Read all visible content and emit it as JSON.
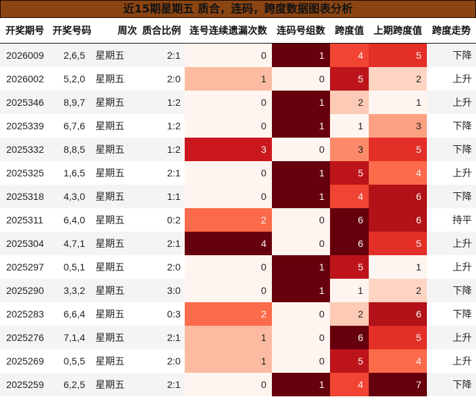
{
  "title": "近15期星期五 质合，连码，跨度数据图表分析",
  "columns": [
    "开奖期号",
    "开奖号码",
    "周次",
    "质合比例",
    "连号连续遗漏次数",
    "连码号组数",
    "跨度值",
    "上期跨度值",
    "跨度走势"
  ],
  "colors": {
    "title_bg": "#8B4513",
    "row_odd": "#f4f4f4",
    "row_even": "#ffffff",
    "colormap": "Reds"
  },
  "rows": [
    {
      "issue": "2026009",
      "numbers": "2,6,5",
      "weekday": "星期五",
      "ratio": "2:1",
      "consec_miss": "0",
      "consec_groups": "1",
      "span": "4",
      "prev_span": "5",
      "trend": "下降"
    },
    {
      "issue": "2026002",
      "numbers": "5,2,0",
      "weekday": "星期五",
      "ratio": "2:0",
      "consec_miss": "1",
      "consec_groups": "0",
      "span": "5",
      "prev_span": "2",
      "trend": "上升"
    },
    {
      "issue": "2025346",
      "numbers": "8,9,7",
      "weekday": "星期五",
      "ratio": "1:2",
      "consec_miss": "0",
      "consec_groups": "1",
      "span": "2",
      "prev_span": "1",
      "trend": "上升"
    },
    {
      "issue": "2025339",
      "numbers": "6,7,6",
      "weekday": "星期五",
      "ratio": "1:2",
      "consec_miss": "0",
      "consec_groups": "1",
      "span": "1",
      "prev_span": "3",
      "trend": "下降"
    },
    {
      "issue": "2025332",
      "numbers": "8,8,5",
      "weekday": "星期五",
      "ratio": "1:2",
      "consec_miss": "3",
      "consec_groups": "0",
      "span": "3",
      "prev_span": "5",
      "trend": "下降"
    },
    {
      "issue": "2025325",
      "numbers": "1,6,5",
      "weekday": "星期五",
      "ratio": "2:1",
      "consec_miss": "0",
      "consec_groups": "1",
      "span": "5",
      "prev_span": "4",
      "trend": "上升"
    },
    {
      "issue": "2025318",
      "numbers": "4,3,0",
      "weekday": "星期五",
      "ratio": "1:1",
      "consec_miss": "0",
      "consec_groups": "1",
      "span": "4",
      "prev_span": "6",
      "trend": "下降"
    },
    {
      "issue": "2025311",
      "numbers": "6,4,0",
      "weekday": "星期五",
      "ratio": "0:2",
      "consec_miss": "2",
      "consec_groups": "0",
      "span": "6",
      "prev_span": "6",
      "trend": "持平"
    },
    {
      "issue": "2025304",
      "numbers": "4,7,1",
      "weekday": "星期五",
      "ratio": "2:1",
      "consec_miss": "4",
      "consec_groups": "0",
      "span": "6",
      "prev_span": "5",
      "trend": "上升"
    },
    {
      "issue": "2025297",
      "numbers": "0,5,1",
      "weekday": "星期五",
      "ratio": "2:0",
      "consec_miss": "0",
      "consec_groups": "1",
      "span": "5",
      "prev_span": "1",
      "trend": "上升"
    },
    {
      "issue": "2025290",
      "numbers": "3,3,2",
      "weekday": "星期五",
      "ratio": "3:0",
      "consec_miss": "0",
      "consec_groups": "1",
      "span": "1",
      "prev_span": "2",
      "trend": "下降"
    },
    {
      "issue": "2025283",
      "numbers": "6,6,4",
      "weekday": "星期五",
      "ratio": "0:3",
      "consec_miss": "2",
      "consec_groups": "0",
      "span": "2",
      "prev_span": "6",
      "trend": "下降"
    },
    {
      "issue": "2025276",
      "numbers": "7,1,4",
      "weekday": "星期五",
      "ratio": "2:1",
      "consec_miss": "1",
      "consec_groups": "0",
      "span": "6",
      "prev_span": "5",
      "trend": "上升"
    },
    {
      "issue": "2025269",
      "numbers": "0,5,5",
      "weekday": "星期五",
      "ratio": "2:0",
      "consec_miss": "1",
      "consec_groups": "0",
      "span": "5",
      "prev_span": "4",
      "trend": "上升"
    },
    {
      "issue": "2025259",
      "numbers": "6,2,5",
      "weekday": "星期五",
      "ratio": "2:1",
      "consec_miss": "0",
      "consec_groups": "1",
      "span": "4",
      "prev_span": "7",
      "trend": "下降"
    }
  ],
  "chart_data": {
    "type": "table",
    "title": "近15期星期五 质合，连码，跨度数据图表分析",
    "columns": [
      "开奖期号",
      "开奖号码",
      "周次",
      "质合比例",
      "连号连续遗漏次数",
      "连码号组数",
      "跨度值",
      "上期跨度值",
      "跨度走势"
    ],
    "heatmap_columns": [
      "连号连续遗漏次数",
      "连码号组数",
      "跨度值",
      "上期跨度值"
    ],
    "colormap": "Reds",
    "series": [
      {
        "name": "开奖期号",
        "values": [
          "2026009",
          "2026002",
          "2025346",
          "2025339",
          "2025332",
          "2025325",
          "2025318",
          "2025311",
          "2025304",
          "2025297",
          "2025290",
          "2025283",
          "2025276",
          "2025269",
          "2025259"
        ]
      },
      {
        "name": "开奖号码",
        "values": [
          "2,6,5",
          "5,2,0",
          "8,9,7",
          "6,7,6",
          "8,8,5",
          "1,6,5",
          "4,3,0",
          "6,4,0",
          "4,7,1",
          "0,5,1",
          "3,3,2",
          "6,6,4",
          "7,1,4",
          "0,5,5",
          "6,2,5"
        ]
      },
      {
        "name": "周次",
        "values": [
          "星期五",
          "星期五",
          "星期五",
          "星期五",
          "星期五",
          "星期五",
          "星期五",
          "星期五",
          "星期五",
          "星期五",
          "星期五",
          "星期五",
          "星期五",
          "星期五",
          "星期五"
        ]
      },
      {
        "name": "质合比例",
        "values": [
          "2:1",
          "2:0",
          "1:2",
          "1:2",
          "1:2",
          "2:1",
          "1:1",
          "0:2",
          "2:1",
          "2:0",
          "3:0",
          "0:3",
          "2:1",
          "2:0",
          "2:1"
        ]
      },
      {
        "name": "连号连续遗漏次数",
        "values": [
          0,
          1,
          0,
          0,
          3,
          0,
          0,
          2,
          4,
          0,
          0,
          2,
          1,
          1,
          0
        ]
      },
      {
        "name": "连码号组数",
        "values": [
          1,
          0,
          1,
          1,
          0,
          1,
          1,
          0,
          0,
          1,
          1,
          0,
          0,
          0,
          1
        ]
      },
      {
        "name": "跨度值",
        "values": [
          4,
          5,
          2,
          1,
          3,
          5,
          4,
          6,
          6,
          5,
          1,
          2,
          6,
          5,
          4
        ]
      },
      {
        "name": "上期跨度值",
        "values": [
          5,
          2,
          1,
          3,
          5,
          4,
          6,
          6,
          5,
          1,
          2,
          6,
          5,
          4,
          7
        ]
      },
      {
        "name": "跨度走势",
        "values": [
          "下降",
          "上升",
          "上升",
          "下降",
          "下降",
          "上升",
          "下降",
          "持平",
          "上升",
          "上升",
          "下降",
          "下降",
          "上升",
          "上升",
          "下降"
        ]
      }
    ]
  }
}
